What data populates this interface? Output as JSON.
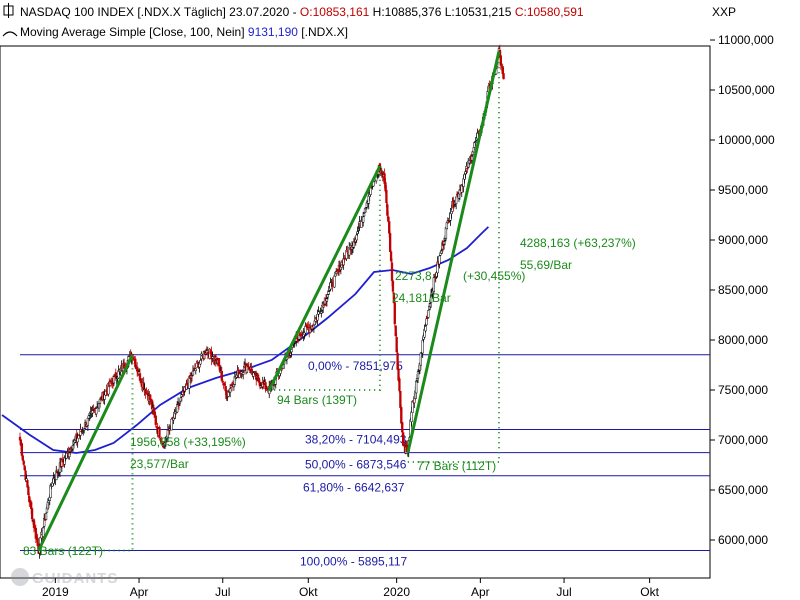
{
  "header": {
    "line1": {
      "title": "NASDAQ 100 INDEX [.NDX.X  Täglich] 23.07.2020 - ",
      "open": "O:10853,161",
      "high": "H:10885,376",
      "low": "L:10531,215",
      "close": "C:10580,591",
      "currency": "XXP"
    },
    "line2": {
      "label": "Moving Average Simple [Close, 100, Nein] ",
      "value": "9131,190",
      "suffix": " [.NDX.X]"
    }
  },
  "colors": {
    "up": "#000000",
    "down": "#c00000",
    "trend": "#1a8a1a",
    "ma": "#1f1fd0",
    "fib": "#1a1aa6",
    "annotation_green": "#1a8a1a",
    "annotation_blue": "#1a1aa6",
    "open": "#c00000",
    "close": "#c00000"
  },
  "watermark_text": "GUIDANTS",
  "chart_data": {
    "type": "line",
    "title": "NASDAQ 100 INDEX [.NDX.X  Täglich] 23.07.2020",
    "ylim": [
      5600,
      11350
    ],
    "y_ticks": [
      "6000,000",
      "6500,000",
      "7000,000",
      "7500,000",
      "8000,000",
      "8500,000",
      "9000,000",
      "9500,000",
      "10000,000",
      "10500,000",
      "11000,000"
    ],
    "y_tick_values": [
      6000,
      6500,
      7000,
      7500,
      8000,
      8500,
      9000,
      9500,
      10000,
      10500,
      11000
    ],
    "x_ticks": [
      "2019",
      "Apr",
      "Jul",
      "Okt",
      "2020",
      "Apr",
      "Jul",
      "Okt"
    ],
    "x_tick_index": [
      38,
      128,
      218,
      310,
      405,
      495,
      585,
      677
    ],
    "price_anchors": [
      [
        0,
        7000
      ],
      [
        10,
        6400
      ],
      [
        20,
        5895
      ],
      [
        35,
        6600
      ],
      [
        50,
        6850
      ],
      [
        70,
        7150
      ],
      [
        90,
        7450
      ],
      [
        104,
        7650
      ],
      [
        121,
        7852
      ],
      [
        130,
        7600
      ],
      [
        140,
        7400
      ],
      [
        148,
        7100
      ],
      [
        155,
        6950
      ],
      [
        162,
        7150
      ],
      [
        175,
        7450
      ],
      [
        185,
        7650
      ],
      [
        200,
        7900
      ],
      [
        212,
        7800
      ],
      [
        222,
        7450
      ],
      [
        233,
        7650
      ],
      [
        245,
        7750
      ],
      [
        255,
        7600
      ],
      [
        268,
        7500
      ],
      [
        285,
        7800
      ],
      [
        300,
        8050
      ],
      [
        315,
        8150
      ],
      [
        330,
        8450
      ],
      [
        345,
        8750
      ],
      [
        362,
        9050
      ],
      [
        375,
        9450
      ],
      [
        386,
        9720
      ],
      [
        392,
        9600
      ],
      [
        397,
        9050
      ],
      [
        402,
        8350
      ],
      [
        407,
        7600
      ],
      [
        412,
        6950
      ],
      [
        417,
        6873
      ],
      [
        422,
        7350
      ],
      [
        428,
        7650
      ],
      [
        435,
        8100
      ],
      [
        443,
        8500
      ],
      [
        453,
        8900
      ],
      [
        463,
        9300
      ],
      [
        475,
        9550
      ],
      [
        487,
        9900
      ],
      [
        497,
        10150
      ],
      [
        505,
        10550
      ],
      [
        510,
        10650
      ],
      [
        515,
        10885
      ],
      [
        520,
        10580
      ]
    ],
    "moving_average": {
      "name": "Moving Average Simple [Close, 100, Nein]",
      "points": [
        [
          0,
          7250
        ],
        [
          30,
          7050
        ],
        [
          55,
          6900
        ],
        [
          80,
          6870
        ],
        [
          100,
          6900
        ],
        [
          120,
          6970
        ],
        [
          145,
          7150
        ],
        [
          170,
          7350
        ],
        [
          200,
          7520
        ],
        [
          230,
          7620
        ],
        [
          260,
          7700
        ],
        [
          290,
          7800
        ],
        [
          320,
          8000
        ],
        [
          350,
          8220
        ],
        [
          380,
          8460
        ],
        [
          400,
          8680
        ],
        [
          420,
          8700
        ],
        [
          440,
          8660
        ],
        [
          460,
          8720
        ],
        [
          480,
          8800
        ],
        [
          500,
          8920
        ],
        [
          515,
          9060
        ],
        [
          523,
          9131
        ]
      ]
    },
    "trend_lines": [
      {
        "from": [
          20,
          5895
        ],
        "to": [
          121,
          7852
        ]
      },
      {
        "from": [
          268,
          7500
        ],
        "to": [
          387,
          9740
        ]
      },
      {
        "from": [
          417,
          6873
        ],
        "to": [
          515,
          10885
        ]
      }
    ],
    "fibonacci": [
      {
        "label": "0,00% - 7851,975",
        "value": 7851.975
      },
      {
        "label": "38,20% - 7104,493",
        "value": 7104.493
      },
      {
        "label": "50,00% - 6873,546",
        "value": 6873.546
      },
      {
        "label": "61,80% - 6642,637",
        "value": 6642.637
      },
      {
        "label": "100,00% - 5895,117",
        "value": 5895.117
      }
    ],
    "annotations": {
      "rise1_text": "1956,858 (+33,195%)",
      "rise1_rate": "23,577/Bar",
      "rise1_bars": "83 Bars (122T)",
      "rise2_bars": "94 Bars (139T)",
      "rise3_text1": "2273,8",
      "rise3_text2": "(+30,455%)",
      "rise3_rate": "24,181/Bar",
      "rise4_text": "4288,163 (+63,237%)",
      "rise4_rate": "55,69/Bar",
      "rise4_bars": "77 Bars (112T)"
    }
  }
}
